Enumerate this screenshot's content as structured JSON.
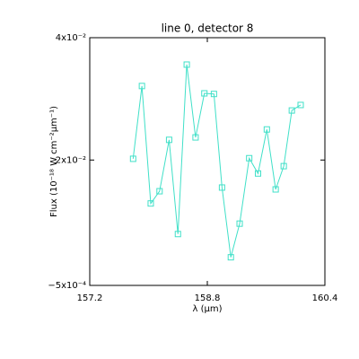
{
  "chart_data": {
    "type": "line",
    "title": "line 0, detector 8",
    "x_label": "λ (μm)",
    "y_label": "Flux (10⁻¹⁸ W cm⁻²μm⁻¹)",
    "x": [
      157.79,
      157.91,
      158.03,
      158.15,
      158.28,
      158.4,
      158.52,
      158.64,
      158.76,
      158.89,
      159.0,
      159.12,
      159.24,
      159.37,
      159.49,
      159.61,
      159.73,
      159.84,
      159.95,
      160.07
    ],
    "series": [
      {
        "color": "#40e0c8",
        "marker": "square",
        "values": [
          0.0202,
          0.0321,
          0.0129,
          0.0149,
          0.0233,
          0.0079,
          0.0356,
          0.0237,
          0.0309,
          0.0308,
          0.0155,
          0.0041,
          0.0096,
          0.0203,
          0.0178,
          0.025,
          0.0152,
          0.019,
          0.0281,
          0.029
        ]
      }
    ],
    "xlim": [
      157.2,
      160.4
    ],
    "xticks": [
      157.2,
      158.8,
      160.4
    ],
    "ylim": [
      -0.0005,
      0.04
    ],
    "yticks": [
      {
        "value": -0.0005,
        "label": "−5x10⁻⁴"
      },
      {
        "value": 0.02,
        "label": "2x10⁻²"
      },
      {
        "value": 0.04,
        "label": "4x10⁻²"
      }
    ]
  }
}
